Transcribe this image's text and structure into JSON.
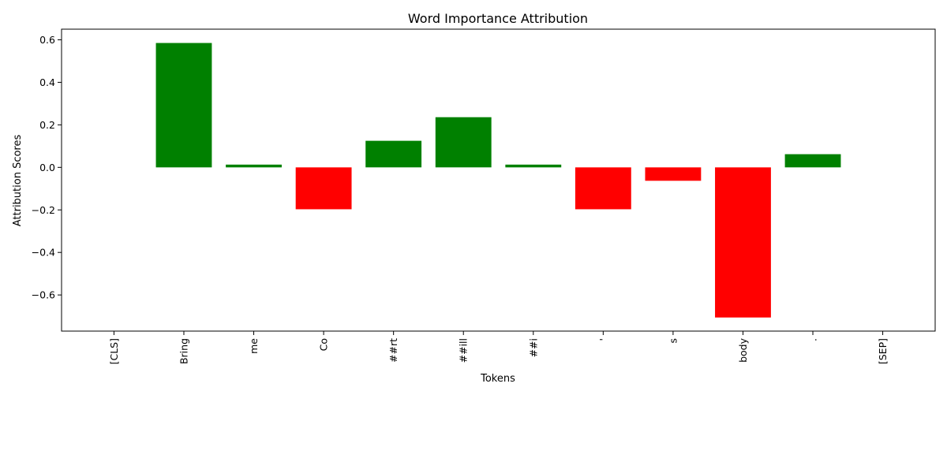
{
  "chart_data": {
    "type": "bar",
    "title": "Word Importance Attribution",
    "xlabel": "Tokens",
    "ylabel": "Attribution Scores",
    "categories": [
      "[CLS]",
      "Bring",
      "me",
      "Co",
      "##rt",
      "##ill",
      "##i",
      "'",
      "s",
      "body",
      ".",
      "[SEP]"
    ],
    "values": [
      0.0,
      0.585,
      0.013,
      -0.197,
      0.125,
      0.236,
      0.013,
      -0.197,
      -0.063,
      -0.706,
      0.062,
      0.0
    ],
    "ylim": [
      -0.77,
      0.65
    ],
    "yticks": [
      -0.6,
      -0.4,
      -0.2,
      0.0,
      0.2,
      0.4,
      0.6
    ],
    "ytick_labels": [
      "−0.6",
      "−0.4",
      "−0.2",
      "0.0",
      "0.2",
      "0.4",
      "0.6"
    ],
    "colors": {
      "positive": "#008000",
      "negative": "#ff0000"
    },
    "grid": false,
    "legend": "none"
  }
}
